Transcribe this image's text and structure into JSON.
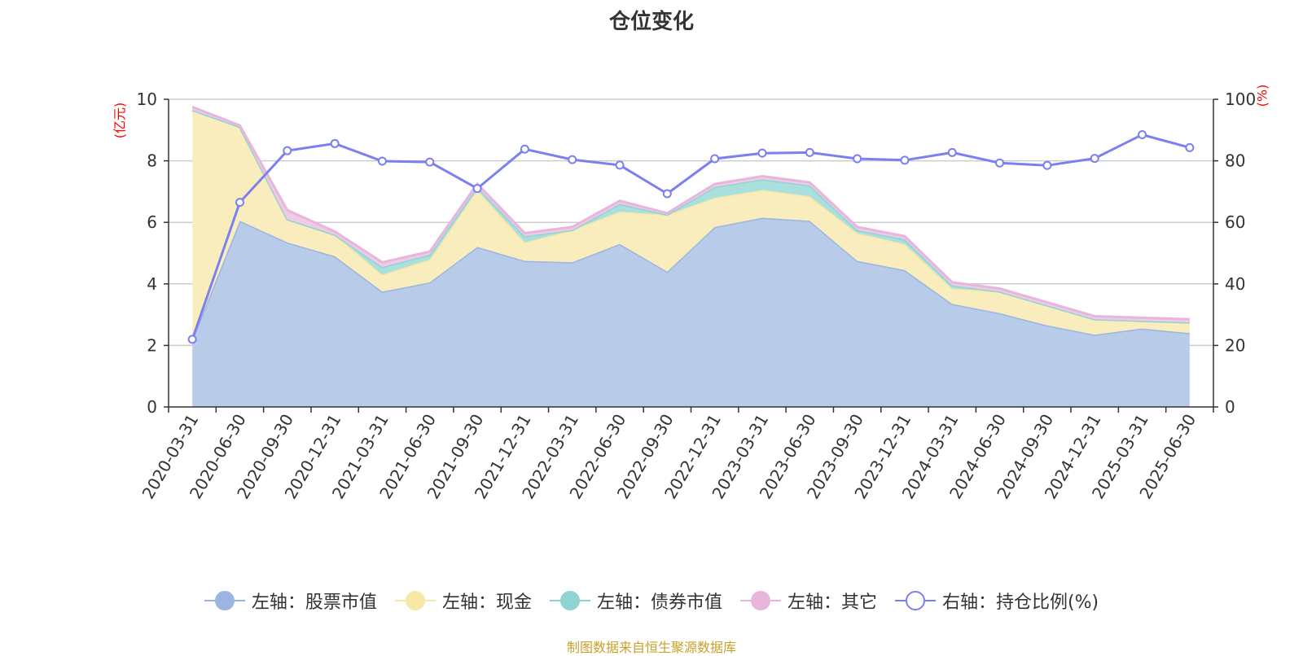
{
  "title": "仓位变化",
  "units": {
    "left": "(亿元)",
    "right": "(%)"
  },
  "source": "制图数据来自恒生聚源数据库",
  "colors": {
    "stock": "#9ab5e0",
    "stock_fill": "#b8ccea",
    "cash": "#f7e8a6",
    "cash_fill": "#f9edbe",
    "bond": "#8fd4d2",
    "bond_fill": "#a9dfdc",
    "other": "#e8b5dc",
    "other_fill": "#efcbe6",
    "ratio": "#7b7ff0",
    "axis_label_red": "#ff0000"
  },
  "legend": [
    {
      "key": "stock",
      "label": "左轴：股票市值",
      "type": "filled"
    },
    {
      "key": "cash",
      "label": "左轴：现金",
      "type": "filled"
    },
    {
      "key": "bond",
      "label": "左轴：债券市值",
      "type": "filled"
    },
    {
      "key": "other",
      "label": "左轴：其它",
      "type": "filled"
    },
    {
      "key": "ratio",
      "label": "右轴：持仓比例(%)",
      "type": "hollow"
    }
  ],
  "chart_data": {
    "type": "area",
    "title": "仓位变化",
    "categories": [
      "2020-03-31",
      "2020-06-30",
      "2020-09-30",
      "2020-12-31",
      "2021-03-31",
      "2021-06-30",
      "2021-09-30",
      "2021-12-31",
      "2022-03-31",
      "2022-06-30",
      "2022-09-30",
      "2022-12-31",
      "2023-03-31",
      "2023-06-30",
      "2023-09-30",
      "2023-12-31",
      "2024-03-31",
      "2024-06-30",
      "2024-09-30",
      "2024-12-31",
      "2025-03-31",
      "2025-06-30"
    ],
    "y_left": {
      "label": "(亿元)",
      "lim": [
        0,
        10
      ],
      "ticks": [
        0,
        2,
        4,
        6,
        8,
        10
      ]
    },
    "y_right": {
      "label": "(%)",
      "lim": [
        0,
        100
      ],
      "ticks": [
        0,
        20,
        40,
        60,
        80,
        100
      ]
    },
    "grid": true,
    "legend_position": "bottom",
    "series": [
      {
        "name": "左轴：股票市值",
        "key": "stock",
        "axis": "left",
        "stacked": true,
        "values": [
          2.2,
          6.05,
          5.35,
          4.9,
          3.75,
          4.05,
          5.2,
          4.75,
          4.7,
          5.3,
          4.4,
          5.85,
          6.15,
          6.05,
          4.75,
          4.45,
          3.35,
          3.05,
          2.65,
          2.35,
          2.55,
          2.4
        ]
      },
      {
        "name": "左轴：现金",
        "key": "cash",
        "axis": "left",
        "stacked": true,
        "values": [
          7.45,
          3.05,
          0.75,
          0.7,
          0.55,
          0.75,
          1.85,
          0.6,
          1.05,
          1.05,
          1.85,
          0.95,
          0.9,
          0.8,
          0.9,
          0.85,
          0.5,
          0.7,
          0.65,
          0.5,
          0.25,
          0.35
        ]
      },
      {
        "name": "左轴：债券市值",
        "key": "bond",
        "axis": "left",
        "stacked": true,
        "values": [
          0.0,
          0.0,
          0.0,
          0.0,
          0.25,
          0.15,
          0.1,
          0.2,
          0.0,
          0.25,
          0.0,
          0.35,
          0.35,
          0.35,
          0.1,
          0.15,
          0.1,
          0.0,
          0.0,
          0.0,
          0.0,
          0.0
        ]
      },
      {
        "name": "左轴：其它",
        "key": "other",
        "axis": "left",
        "stacked": true,
        "values": [
          0.1,
          0.05,
          0.3,
          0.1,
          0.15,
          0.1,
          0.1,
          0.1,
          0.1,
          0.1,
          0.05,
          0.1,
          0.1,
          0.1,
          0.1,
          0.1,
          0.1,
          0.1,
          0.1,
          0.1,
          0.1,
          0.1
        ]
      },
      {
        "name": "右轴：持仓比例(%)",
        "key": "ratio",
        "axis": "right",
        "type": "line",
        "values": [
          22.0,
          66.5,
          83.3,
          85.6,
          79.9,
          79.6,
          71.0,
          83.8,
          80.4,
          78.6,
          69.3,
          80.7,
          82.5,
          82.7,
          80.7,
          80.2,
          82.7,
          79.3,
          78.5,
          80.8,
          88.5,
          84.3
        ]
      }
    ]
  }
}
